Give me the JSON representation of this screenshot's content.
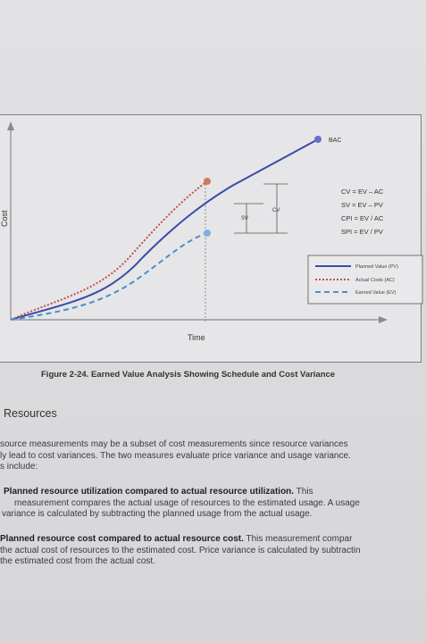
{
  "figure": {
    "axis_y_label": "Cost",
    "axis_x_label": "Time",
    "bac_label": "BAC",
    "sv_label": "SV",
    "cv_label": "CV",
    "formulas": [
      "CV = EV – AC",
      "SV = EV – PV",
      "CPI = EV / AC",
      "SPI = EV / PV"
    ],
    "legend": [
      {
        "label": "Planned Value (PV)",
        "color": "#3a4aa8",
        "style": "solid"
      },
      {
        "label": "Actual Costs (AC)",
        "color": "#c0504d",
        "style": "dotted"
      },
      {
        "label": "Earned Value (EV)",
        "color": "#4a90c8",
        "style": "dashed"
      }
    ],
    "caption": "Figure 2-24. Earned Value Analysis Showing Schedule and Cost Variance"
  },
  "section": {
    "heading": "Resources",
    "intro_lines": [
      "source measurements may be a subset of cost measurements since resource variances",
      "ly lead to cost variances. The two measures evaluate price variance and usage variance.",
      "s include:"
    ],
    "item1_bold": "Planned resource utilization compared to actual resource utilization.",
    "item1_tail": " This",
    "item1_lines": [
      "measurement compares the actual usage of resources to the estimated usage. A usage",
      "variance is calculated by subtracting the planned usage from the actual usage."
    ],
    "item2_bold": "Planned resource cost compared to actual resource cost.",
    "item2_tail": " This measurement compar",
    "item2_lines": [
      "the actual cost of resources to the estimated cost. Price variance is calculated by subtractin",
      "the estimated cost from the actual cost."
    ]
  }
}
